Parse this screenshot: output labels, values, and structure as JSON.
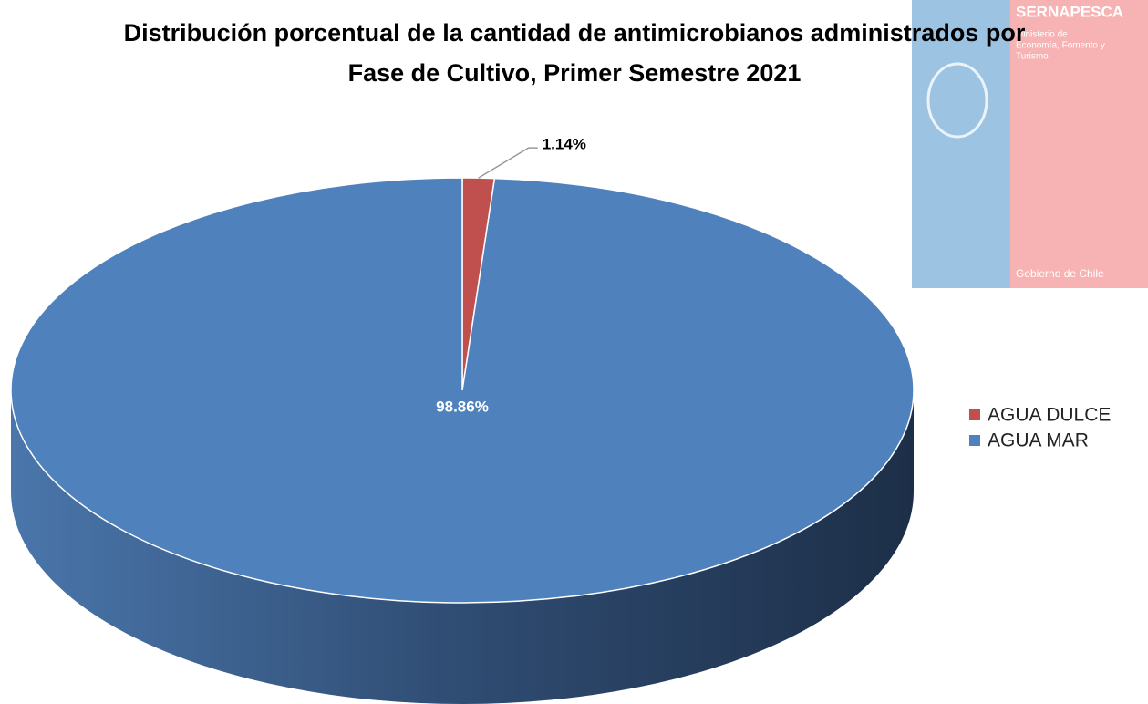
{
  "chart_data": {
    "type": "pie3d",
    "title": "Distribución porcentual de la cantidad de antimicrobianos administrados por Fase de Cultivo, Primer Semestre 2021",
    "categories": [
      "AGUA DULCE",
      "AGUA MAR"
    ],
    "values": [
      1.14,
      98.86
    ],
    "value_labels": [
      "1.14%",
      "98.86%"
    ],
    "colors": [
      "#c0504d",
      "#4f81bd"
    ],
    "legend": "right"
  },
  "logo": {
    "name": "SERNAPESCA",
    "ministry": [
      "Ministerio de",
      "Economía, Fomento y",
      "Turismo"
    ],
    "government": "Gobierno de Chile"
  }
}
